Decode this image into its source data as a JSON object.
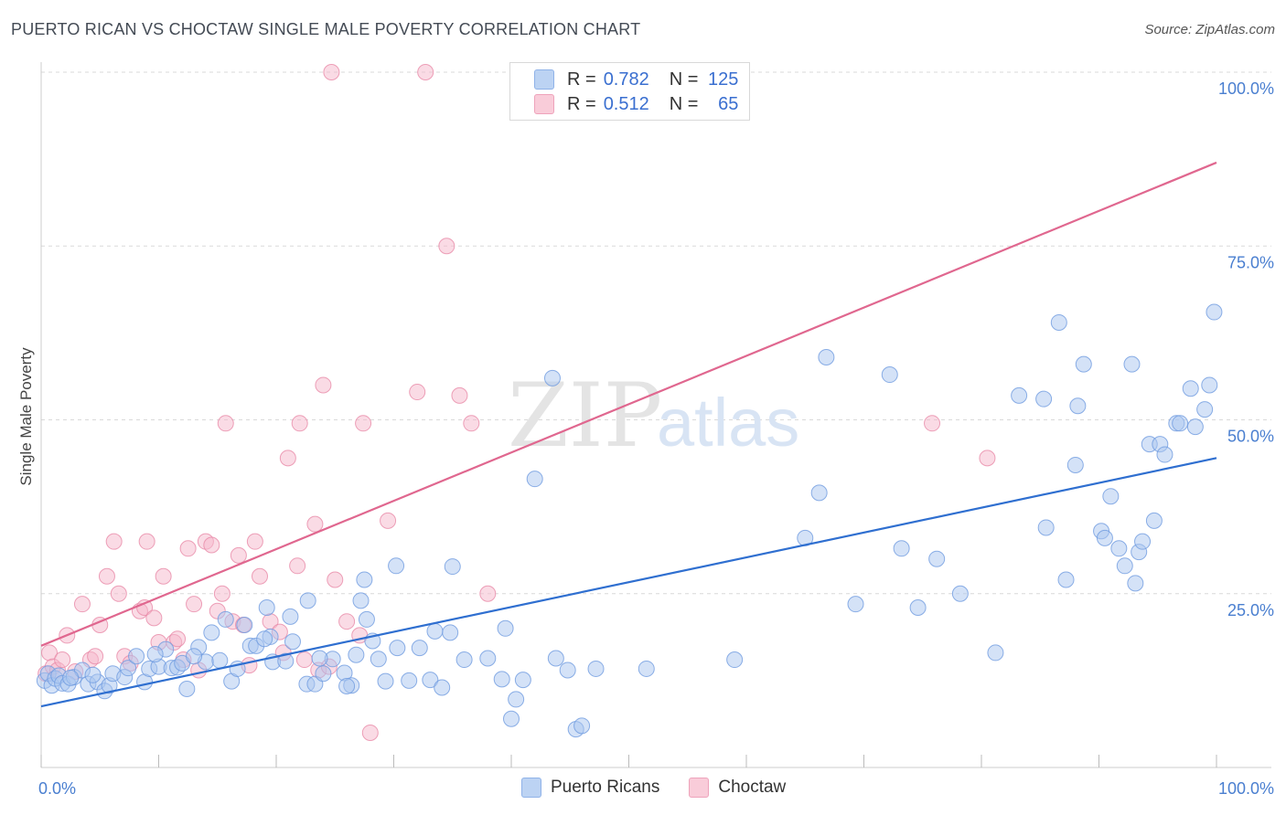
{
  "header": {
    "title": "PUERTO RICAN VS CHOCTAW SINGLE MALE POVERTY CORRELATION CHART",
    "source": "Source: ZipAtlas.com"
  },
  "watermark": {
    "zip": "ZIP",
    "atlas": "atlas"
  },
  "colors": {
    "blue_fill": "#a9c6f0",
    "blue_stroke": "#6f9be0",
    "blue_line": "#2f6fd0",
    "pink_fill": "#f6b8cb",
    "pink_stroke": "#e98aa8",
    "pink_line": "#e0678f",
    "grid": "#d9d9d9",
    "tick_text": "#4a7fd0"
  },
  "legend": {
    "rows": [
      {
        "r_label": "R =",
        "r_value": "0.782",
        "n_label": "N =",
        "n_value": "125"
      },
      {
        "r_label": "R =",
        "r_value": "0.512",
        "n_label": "N =",
        "n_value": "65"
      }
    ]
  },
  "bottom_legend": {
    "items": [
      "Puerto Ricans",
      "Choctaw"
    ]
  },
  "chart_data": {
    "type": "scatter",
    "title": "PUERTO RICAN VS CHOCTAW SINGLE MALE POVERTY CORRELATION CHART",
    "xlabel": "",
    "ylabel": "Single Male Poverty",
    "xlim": [
      0,
      100
    ],
    "ylim": [
      0,
      100
    ],
    "x_tick_labels": [
      "0.0%",
      "100.0%"
    ],
    "y_ticks": [
      25,
      50,
      75,
      100
    ],
    "y_tick_labels": [
      "25.0%",
      "50.0%",
      "75.0%",
      "100.0%"
    ],
    "grid": true,
    "legend_position": "top-center",
    "series": [
      {
        "name": "Puerto Ricans",
        "color": "#a9c6f0",
        "trend": {
          "x": [
            0,
            100
          ],
          "y": [
            8.8,
            44.5
          ]
        },
        "points": [
          [
            0.3,
            12.5
          ],
          [
            0.6,
            13.5
          ],
          [
            0.9,
            11.8
          ],
          [
            1.2,
            12.8
          ],
          [
            1.5,
            13.2
          ],
          [
            1.8,
            12.1
          ],
          [
            2.3,
            12.0
          ],
          [
            2.8,
            13.0
          ],
          [
            3.5,
            14.0
          ],
          [
            4.0,
            12.0
          ],
          [
            4.8,
            12.3
          ],
          [
            5.4,
            11.0
          ],
          [
            5.8,
            11.8
          ],
          [
            6.1,
            13.5
          ],
          [
            7.1,
            13.0
          ],
          [
            7.4,
            14.3
          ],
          [
            8.1,
            16.0
          ],
          [
            8.8,
            12.3
          ],
          [
            9.2,
            14.2
          ],
          [
            10.0,
            14.5
          ],
          [
            10.6,
            17.0
          ],
          [
            11.1,
            14.3
          ],
          [
            11.6,
            14.4
          ],
          [
            12.0,
            15.0
          ],
          [
            12.4,
            11.3
          ],
          [
            13.4,
            17.3
          ],
          [
            14.0,
            15.2
          ],
          [
            14.5,
            19.4
          ],
          [
            15.2,
            15.4
          ],
          [
            15.7,
            21.3
          ],
          [
            16.2,
            12.4
          ],
          [
            16.7,
            14.2
          ],
          [
            17.3,
            20.5
          ],
          [
            17.8,
            17.5
          ],
          [
            18.3,
            17.5
          ],
          [
            19.2,
            23.0
          ],
          [
            19.5,
            18.8
          ],
          [
            19.7,
            15.2
          ],
          [
            20.8,
            15.3
          ],
          [
            21.2,
            21.7
          ],
          [
            21.4,
            18.1
          ],
          [
            22.6,
            12.0
          ],
          [
            22.7,
            24.0
          ],
          [
            23.3,
            12.0
          ],
          [
            24.0,
            13.5
          ],
          [
            24.8,
            15.6
          ],
          [
            25.8,
            13.6
          ],
          [
            26.4,
            11.8
          ],
          [
            26.8,
            16.2
          ],
          [
            27.2,
            24.0
          ],
          [
            27.5,
            27.0
          ],
          [
            27.7,
            21.3
          ],
          [
            28.2,
            18.2
          ],
          [
            28.7,
            15.6
          ],
          [
            29.3,
            12.4
          ],
          [
            30.2,
            29.0
          ],
          [
            30.3,
            17.2
          ],
          [
            31.3,
            12.5
          ],
          [
            32.2,
            17.2
          ],
          [
            33.1,
            12.6
          ],
          [
            34.1,
            11.5
          ],
          [
            34.8,
            19.4
          ],
          [
            35.0,
            28.9
          ],
          [
            36.0,
            15.5
          ],
          [
            38.0,
            15.7
          ],
          [
            39.2,
            12.7
          ],
          [
            39.5,
            20.0
          ],
          [
            40.0,
            7.0
          ],
          [
            40.4,
            9.8
          ],
          [
            41.0,
            12.6
          ],
          [
            42.0,
            41.5
          ],
          [
            43.5,
            56.0
          ],
          [
            43.8,
            15.7
          ],
          [
            44.8,
            14.0
          ],
          [
            45.5,
            5.5
          ],
          [
            46.0,
            6.0
          ],
          [
            47.2,
            14.2
          ],
          [
            51.5,
            14.2
          ],
          [
            59.0,
            15.5
          ],
          [
            65.0,
            33.0
          ],
          [
            66.2,
            39.5
          ],
          [
            66.8,
            59.0
          ],
          [
            69.3,
            23.5
          ],
          [
            72.2,
            56.5
          ],
          [
            73.2,
            31.5
          ],
          [
            74.6,
            23.0
          ],
          [
            76.2,
            30.0
          ],
          [
            78.2,
            25.0
          ],
          [
            81.2,
            16.5
          ],
          [
            83.2,
            53.5
          ],
          [
            85.3,
            53.0
          ],
          [
            85.5,
            34.5
          ],
          [
            86.6,
            64.0
          ],
          [
            87.2,
            27.0
          ],
          [
            88.0,
            43.5
          ],
          [
            88.2,
            52.0
          ],
          [
            88.7,
            58.0
          ],
          [
            90.2,
            34.0
          ],
          [
            90.5,
            33.0
          ],
          [
            91.0,
            39.0
          ],
          [
            91.7,
            31.5
          ],
          [
            92.2,
            29.0
          ],
          [
            92.8,
            58.0
          ],
          [
            93.1,
            26.5
          ],
          [
            93.4,
            31.0
          ],
          [
            93.7,
            32.5
          ],
          [
            94.3,
            46.5
          ],
          [
            94.7,
            35.5
          ],
          [
            95.2,
            46.5
          ],
          [
            95.6,
            45.0
          ],
          [
            96.6,
            49.5
          ],
          [
            96.9,
            49.5
          ],
          [
            97.8,
            54.5
          ],
          [
            98.2,
            49.0
          ],
          [
            99.0,
            51.5
          ],
          [
            99.4,
            55.0
          ],
          [
            99.8,
            65.5
          ],
          [
            2.5,
            12.9
          ],
          [
            4.4,
            13.3
          ],
          [
            9.7,
            16.3
          ],
          [
            13.0,
            16.0
          ],
          [
            19.0,
            18.5
          ],
          [
            23.7,
            15.7
          ],
          [
            26.0,
            11.7
          ],
          [
            33.5,
            19.6
          ]
        ]
      },
      {
        "name": "Choctaw",
        "color": "#f6b8cb",
        "trend": {
          "x": [
            0,
            100
          ],
          "y": [
            17.5,
            87.0
          ]
        },
        "points": [
          [
            0.4,
            13.5
          ],
          [
            0.7,
            16.5
          ],
          [
            1.0,
            14.5
          ],
          [
            1.4,
            14.0
          ],
          [
            1.8,
            15.5
          ],
          [
            2.2,
            19.0
          ],
          [
            2.9,
            13.8
          ],
          [
            3.5,
            23.5
          ],
          [
            4.2,
            15.5
          ],
          [
            4.6,
            16.0
          ],
          [
            5.0,
            20.5
          ],
          [
            5.6,
            27.5
          ],
          [
            6.2,
            32.5
          ],
          [
            6.6,
            25.0
          ],
          [
            7.1,
            16.0
          ],
          [
            7.6,
            15.0
          ],
          [
            8.4,
            22.5
          ],
          [
            8.8,
            23.0
          ],
          [
            9.0,
            32.5
          ],
          [
            9.6,
            21.5
          ],
          [
            10.0,
            18.0
          ],
          [
            10.4,
            27.5
          ],
          [
            11.3,
            18.0
          ],
          [
            11.6,
            18.5
          ],
          [
            12.1,
            15.5
          ],
          [
            12.5,
            31.5
          ],
          [
            13.0,
            23.5
          ],
          [
            13.4,
            14.0
          ],
          [
            14.0,
            32.5
          ],
          [
            14.5,
            32.0
          ],
          [
            15.0,
            22.5
          ],
          [
            15.4,
            25.0
          ],
          [
            15.7,
            49.5
          ],
          [
            16.3,
            21.0
          ],
          [
            16.8,
            30.5
          ],
          [
            17.2,
            20.5
          ],
          [
            17.7,
            14.7
          ],
          [
            18.2,
            32.5
          ],
          [
            18.6,
            27.5
          ],
          [
            19.5,
            21.0
          ],
          [
            20.3,
            19.5
          ],
          [
            20.6,
            16.5
          ],
          [
            21.0,
            44.5
          ],
          [
            21.8,
            29.0
          ],
          [
            22.0,
            49.5
          ],
          [
            22.4,
            15.5
          ],
          [
            23.3,
            35.0
          ],
          [
            23.6,
            14.0
          ],
          [
            24.0,
            55.0
          ],
          [
            24.5,
            14.5
          ],
          [
            25.0,
            27.0
          ],
          [
            26.0,
            21.0
          ],
          [
            27.1,
            19.0
          ],
          [
            27.4,
            49.5
          ],
          [
            28.0,
            5.0
          ],
          [
            29.5,
            35.5
          ],
          [
            32.0,
            54.0
          ],
          [
            32.7,
            100.0
          ],
          [
            34.5,
            75.0
          ],
          [
            35.6,
            53.5
          ],
          [
            36.6,
            49.5
          ],
          [
            38.0,
            25.0
          ],
          [
            75.8,
            49.5
          ],
          [
            80.5,
            44.5
          ],
          [
            24.7,
            100.0
          ]
        ]
      }
    ]
  }
}
